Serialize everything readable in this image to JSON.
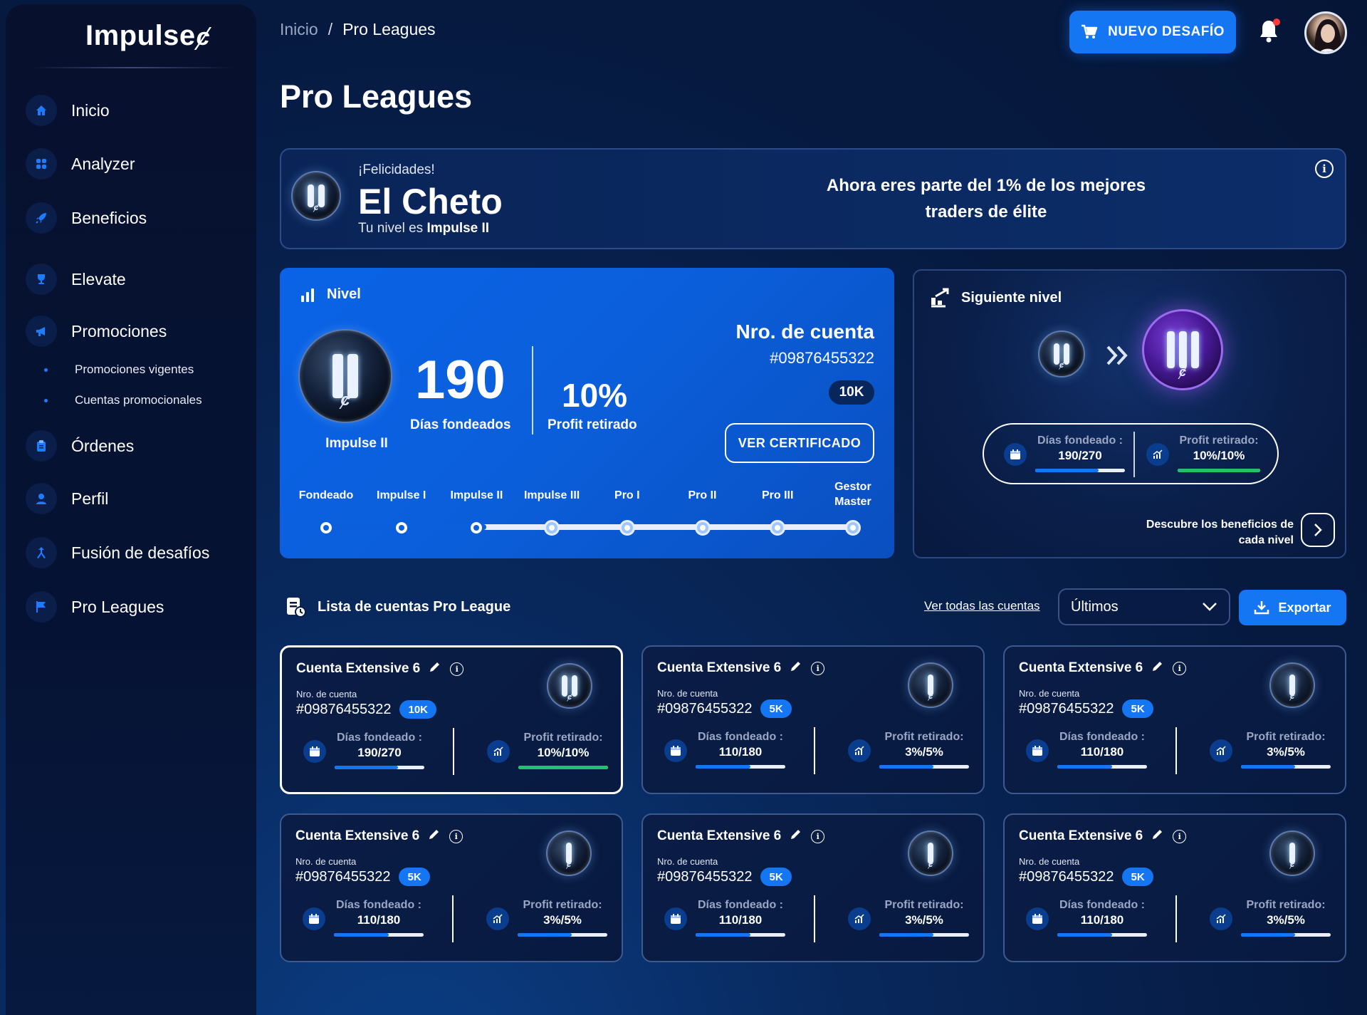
{
  "app": {
    "logo": "Impulse",
    "logo_mark": "ȼ"
  },
  "sidebar": {
    "items": [
      {
        "label": "Inicio",
        "icon": "home-icon"
      },
      {
        "label": "Analyzer",
        "icon": "grid-icon"
      },
      {
        "label": "Beneficios",
        "icon": "rocket-icon"
      },
      {
        "label": "Elevate",
        "icon": "trophy-icon"
      },
      {
        "label": "Promociones",
        "icon": "megaphone-icon"
      },
      {
        "label": "Órdenes",
        "icon": "clipboard-icon"
      },
      {
        "label": "Perfil",
        "icon": "user-icon"
      },
      {
        "label": "Fusión de desafíos",
        "icon": "merge-icon"
      },
      {
        "label": "Pro Leagues",
        "icon": "flag-icon"
      }
    ],
    "sub_items": [
      "Promociones vigentes",
      "Cuentas promocionales"
    ]
  },
  "header": {
    "breadcrumb": [
      "Inicio",
      "Pro Leagues"
    ],
    "breadcrumb_sep": "/",
    "new_challenge_label": "NUEVO DESAFÍO",
    "page_title": "Pro Leagues"
  },
  "banner": {
    "congrats": "¡Felicidades!",
    "name": "El Cheto",
    "level_prefix": "Tu nivel es",
    "level_name": "Impulse II",
    "message": "Ahora eres parte del 1% de los mejores traders de élite",
    "info_glyph": "i"
  },
  "level_card": {
    "title": "Nivel",
    "coin_label": "Impulse II",
    "days_value": "190",
    "days_label": "Días fondeados",
    "profit_value": "10%",
    "profit_label": "Profit retirado",
    "account_title": "Nro. de cuenta",
    "account_number": "#09876455322",
    "account_size": "10K",
    "certificate_label": "VER CERTIFICADO",
    "steps": [
      "Fondeado",
      "Impulse I",
      "Impulse II",
      "Impulse III",
      "Pro I",
      "Pro II",
      "Pro III",
      "Gestor Master"
    ],
    "current_step_index": 2,
    "progress_fraction": 0.3
  },
  "next_level": {
    "title": "Siguiente nivel",
    "days_label": "Días fondeado :",
    "days_value": "190/270",
    "days_fraction": 0.703,
    "profit_label": "Profit retirado:",
    "profit_value": "10%/10%",
    "profit_fraction": 1.0,
    "discover_label": "Descubre los beneficios de cada nivel"
  },
  "list": {
    "title": "Lista de cuentas Pro League",
    "see_all_label": "Ver todas las cuentas",
    "sort_value": "Últimos",
    "export_label": "Exportar",
    "account_number_label": "Nro. de cuenta",
    "days_label": "Días fondeado :",
    "profit_label": "Profit retirado:",
    "accounts": [
      {
        "name": "Cuenta Extensive 6",
        "number": "#09876455322",
        "size": "10K",
        "days": "190/270",
        "days_fraction": 0.703,
        "profit": "10%/10%",
        "profit_fraction": 1.0,
        "level_bars": 2,
        "selected": true
      },
      {
        "name": "Cuenta Extensive 6",
        "number": "#09876455322",
        "size": "5K",
        "days": "110/180",
        "days_fraction": 0.611,
        "profit": "3%/5%",
        "profit_fraction": 0.6,
        "level_bars": 1,
        "selected": false
      },
      {
        "name": "Cuenta Extensive 6",
        "number": "#09876455322",
        "size": "5K",
        "days": "110/180",
        "days_fraction": 0.611,
        "profit": "3%/5%",
        "profit_fraction": 0.6,
        "level_bars": 1,
        "selected": false
      },
      {
        "name": "Cuenta Extensive 6",
        "number": "#09876455322",
        "size": "5K",
        "days": "110/180",
        "days_fraction": 0.611,
        "profit": "3%/5%",
        "profit_fraction": 0.6,
        "level_bars": 1,
        "selected": false
      },
      {
        "name": "Cuenta Extensive 6",
        "number": "#09876455322",
        "size": "5K",
        "days": "110/180",
        "days_fraction": 0.611,
        "profit": "3%/5%",
        "profit_fraction": 0.6,
        "level_bars": 1,
        "selected": false
      },
      {
        "name": "Cuenta Extensive 6",
        "number": "#09876455322",
        "size": "5K",
        "days": "110/180",
        "days_fraction": 0.611,
        "profit": "3%/5%",
        "profit_fraction": 0.6,
        "level_bars": 1,
        "selected": false
      }
    ]
  },
  "colors": {
    "accent": "#1476f2",
    "success": "#1fc46a",
    "background": "#061a40",
    "purple_level": "#6a2fd0"
  }
}
